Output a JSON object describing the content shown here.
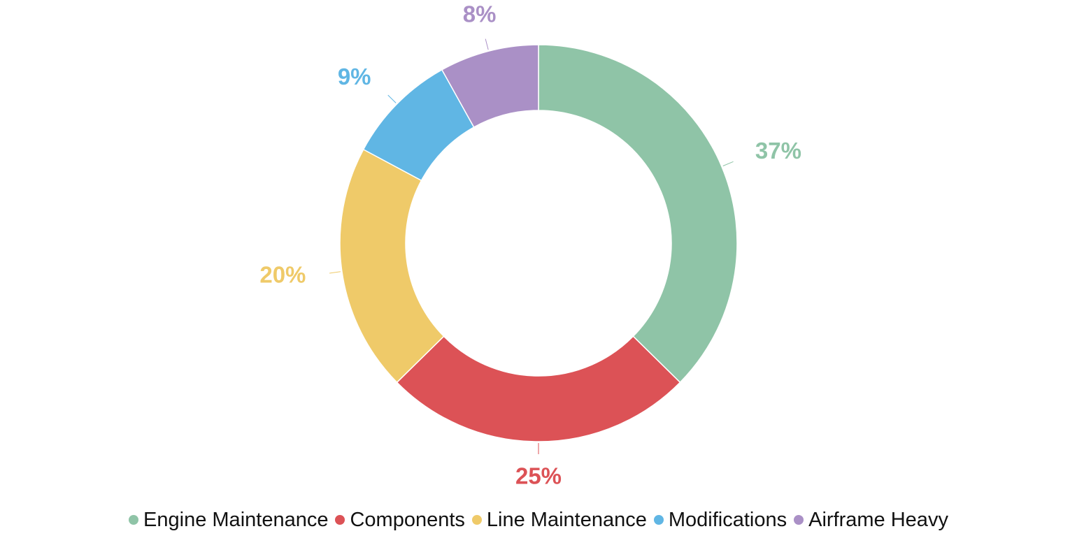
{
  "chart_data": {
    "type": "pie",
    "donut": true,
    "categories": [
      "Engine Maintenance",
      "Components",
      "Line Maintenance",
      "Modifications",
      "Airframe Heavy"
    ],
    "values": [
      37,
      25,
      20,
      9,
      8
    ],
    "labels": [
      "37%",
      "25%",
      "20%",
      "9%",
      "8%"
    ],
    "colors": [
      "#8fc4a7",
      "#dc5256",
      "#efca69",
      "#60b6e4",
      "#aa90c6"
    ],
    "start_angle_deg": 0,
    "direction": "clockwise",
    "legend_position": "bottom",
    "title": ""
  }
}
